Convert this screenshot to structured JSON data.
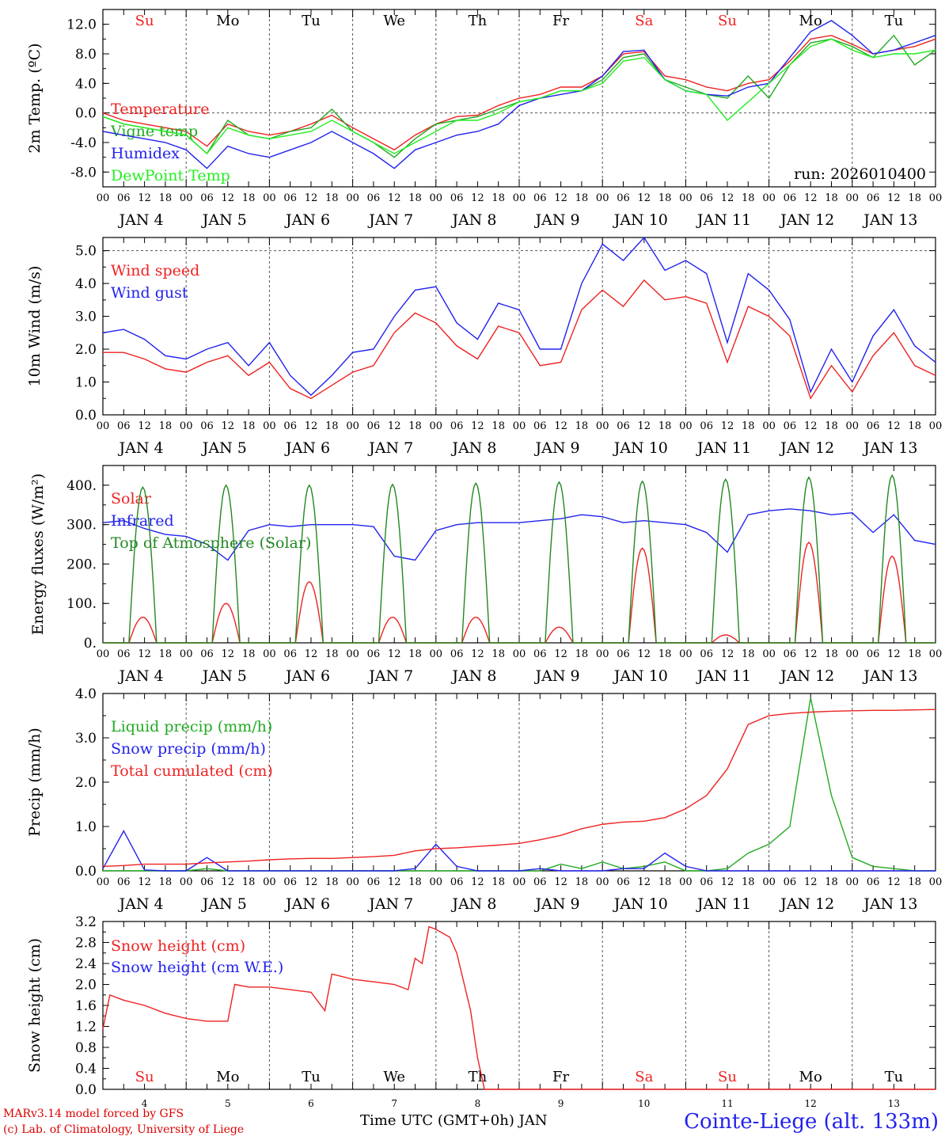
{
  "footer": {
    "model_credit": "MARv3.14 model forced by GFS",
    "lab_credit": "(c) Lab. of Climatology, University of Liege",
    "x_axis_label": "Time UTC (GMT+0h) JAN",
    "station": "Cointe-Liege (alt. 133m)"
  },
  "hour_ticks": [
    "00",
    "06",
    "12",
    "18"
  ],
  "end_tick": "00",
  "date_labels": [
    "JAN  4",
    "JAN  5",
    "JAN  6",
    "JAN  7",
    "JAN  8",
    "JAN  9",
    "JAN 10",
    "JAN 11",
    "JAN 12",
    "JAN 13"
  ],
  "day_names": [
    "Su",
    "Mo",
    "Tu",
    "We",
    "Th",
    "Fr",
    "Sa",
    "Su",
    "Mo",
    "Tu"
  ],
  "day_name_colors": [
    "#ee2222",
    "#000000",
    "#000000",
    "#000000",
    "#000000",
    "#000000",
    "#ee2222",
    "#ee2222",
    "#000000",
    "#000000"
  ],
  "day_numbers": [
    "4",
    "5",
    "6",
    "7",
    "8",
    "9",
    "10",
    "11",
    "12",
    "13"
  ],
  "chart_data": [
    {
      "type": "line",
      "id": "temp",
      "ylabel": "2m Temp. (ºC)",
      "ylim": [
        -10,
        14
      ],
      "yticks": [
        -8,
        -4,
        0,
        4,
        8,
        12
      ],
      "ytick_labels": [
        "-8.0",
        "-4.0",
        "0.0",
        "4.0",
        "8.0",
        "12.0"
      ],
      "ref_line": 0,
      "annotation": "run: 2026010400",
      "x_hours": [
        0,
        6,
        12,
        18,
        24,
        30,
        36,
        42,
        48,
        54,
        60,
        66,
        72,
        78,
        84,
        90,
        96,
        102,
        108,
        114,
        120,
        126,
        132,
        138,
        144,
        150,
        156,
        162,
        168,
        174,
        180,
        186,
        192,
        198,
        204,
        210,
        216,
        222,
        228,
        234,
        240
      ],
      "series": [
        {
          "name": "Temperature",
          "color": "#ee2222",
          "values": [
            0,
            -1,
            -1.5,
            -2,
            -2.5,
            -4.5,
            -1.5,
            -2.5,
            -3,
            -2.5,
            -1.5,
            -0.3,
            -2,
            -3.5,
            -5,
            -3,
            -1.5,
            -0.5,
            -0.3,
            1,
            2,
            2.5,
            3.5,
            3.5,
            5,
            8,
            8.3,
            5,
            4.5,
            3.5,
            3,
            4,
            4.5,
            7,
            10,
            10.5,
            9.3,
            8,
            8.5,
            9,
            10
          ]
        },
        {
          "name": "Vigne temp",
          "color": "#22aa22",
          "values": [
            -0.5,
            -1.5,
            -2,
            -2.5,
            -3,
            -5.5,
            -1,
            -3,
            -3.5,
            -2.5,
            -2,
            0.5,
            -2.5,
            -4,
            -6,
            -3.5,
            -1.5,
            -1,
            -0.5,
            0.5,
            1.5,
            2,
            3,
            3,
            4.5,
            7.5,
            8,
            4.5,
            3.5,
            2.5,
            2,
            5,
            2,
            6.5,
            9.5,
            10,
            9,
            7.5,
            10.5,
            6.5,
            8.5
          ]
        },
        {
          "name": "Humidex",
          "color": "#2222ee",
          "values": [
            -2.5,
            -3,
            -3.5,
            -4,
            -5,
            -7.5,
            -4.5,
            -5.5,
            -6,
            -5,
            -4,
            -2.5,
            -4,
            -5.5,
            -7.5,
            -5,
            -4,
            -3,
            -2.5,
            -1.5,
            1,
            2,
            2.5,
            3,
            5,
            8.3,
            8.5,
            4.5,
            3,
            2.5,
            2.3,
            3.5,
            4,
            7.5,
            11,
            12.5,
            10.5,
            8,
            8.5,
            9.5,
            10.5
          ]
        },
        {
          "name": "DewPoint Temp",
          "color": "#22ee22",
          "values": [
            -0.5,
            -1.5,
            -2,
            -2.5,
            -3,
            -5.5,
            -2,
            -3,
            -3.5,
            -3,
            -2.5,
            -1,
            -2.5,
            -4,
            -5.5,
            -4,
            -2.5,
            -1,
            -1,
            0,
            1.5,
            2,
            3,
            3,
            4,
            7,
            7.5,
            4.5,
            3,
            2.5,
            -1,
            1.5,
            4,
            6.5,
            9,
            10,
            8.5,
            7.5,
            8,
            8,
            8.5
          ]
        }
      ]
    },
    {
      "type": "line",
      "id": "wind",
      "ylabel": "10m Wind (m/s)",
      "ylim": [
        0,
        5.4
      ],
      "yticks": [
        0,
        1,
        2,
        3,
        4,
        5
      ],
      "ytick_labels": [
        "0.0",
        "1.0",
        "2.0",
        "3.0",
        "4.0",
        "5.0"
      ],
      "ref_line": 5,
      "x_hours": [
        0,
        6,
        12,
        18,
        24,
        30,
        36,
        42,
        48,
        54,
        60,
        66,
        72,
        78,
        84,
        90,
        96,
        102,
        108,
        114,
        120,
        126,
        132,
        138,
        144,
        150,
        156,
        162,
        168,
        174,
        180,
        186,
        192,
        198,
        204,
        210,
        216,
        222,
        228,
        234,
        240
      ],
      "series": [
        {
          "name": "Wind speed",
          "color": "#ee2222",
          "values": [
            1.9,
            1.9,
            1.7,
            1.4,
            1.3,
            1.6,
            1.8,
            1.2,
            1.6,
            0.8,
            0.5,
            0.9,
            1.3,
            1.5,
            2.5,
            3.1,
            2.8,
            2.1,
            1.7,
            2.7,
            2.5,
            1.5,
            1.6,
            3.2,
            3.8,
            3.3,
            4.1,
            3.5,
            3.6,
            3.4,
            1.6,
            3.3,
            3.0,
            2.4,
            0.5,
            1.5,
            0.7,
            1.8,
            2.5,
            1.5,
            1.2
          ]
        },
        {
          "name": "Wind gust",
          "color": "#2222ee",
          "values": [
            2.5,
            2.6,
            2.3,
            1.8,
            1.7,
            2.0,
            2.2,
            1.5,
            2.2,
            1.2,
            0.6,
            1.2,
            1.9,
            2.0,
            3.0,
            3.8,
            3.9,
            2.8,
            2.3,
            3.4,
            3.2,
            2.0,
            2.0,
            4.0,
            5.2,
            4.7,
            5.4,
            4.4,
            4.7,
            4.3,
            2.2,
            4.3,
            3.8,
            2.9,
            0.7,
            2.0,
            1.0,
            2.4,
            3.2,
            2.1,
            1.6
          ]
        }
      ]
    },
    {
      "type": "line",
      "id": "energy",
      "ylabel": "Energy fluxes (W/m²)",
      "ylim": [
        0,
        450
      ],
      "yticks": [
        0,
        100,
        200,
        300,
        400
      ],
      "ytick_labels": [
        "0.",
        "100.",
        "200.",
        "300.",
        "400."
      ],
      "ref_line": null,
      "day_peak_hour": 12,
      "series": [
        {
          "name": "Solar",
          "color": "#ee2222",
          "daily_peaks": [
            65,
            100,
            155,
            65,
            65,
            40,
            240,
            20,
            255,
            220
          ]
        },
        {
          "name": "Infrared",
          "color": "#2222ee",
          "x_hours": [
            0,
            6,
            12,
            18,
            24,
            30,
            36,
            42,
            48,
            54,
            60,
            66,
            72,
            78,
            84,
            90,
            96,
            102,
            108,
            114,
            120,
            126,
            132,
            138,
            144,
            150,
            156,
            162,
            168,
            174,
            180,
            186,
            192,
            198,
            204,
            210,
            216,
            222,
            228,
            234,
            240
          ],
          "values": [
            305,
            310,
            290,
            275,
            270,
            250,
            210,
            285,
            300,
            295,
            300,
            300,
            300,
            295,
            220,
            210,
            285,
            300,
            305,
            305,
            305,
            310,
            315,
            325,
            320,
            305,
            310,
            305,
            300,
            280,
            230,
            325,
            335,
            340,
            335,
            325,
            330,
            280,
            325,
            260,
            250
          ]
        },
        {
          "name": "Top of Atmosphere (Solar)",
          "color": "#228822",
          "daily_peaks": [
            395,
            400,
            400,
            402,
            405,
            408,
            410,
            415,
            420,
            425
          ]
        }
      ]
    },
    {
      "type": "line",
      "id": "precip",
      "ylabel": "Precip (mm/h)",
      "ylim": [
        0,
        4
      ],
      "yticks": [
        0,
        1,
        2,
        3,
        4
      ],
      "ytick_labels": [
        "0.0",
        "1.0",
        "2.0",
        "3.0",
        "4.0"
      ],
      "ref_line": null,
      "x_hours": [
        0,
        6,
        12,
        18,
        24,
        30,
        36,
        42,
        48,
        54,
        60,
        66,
        72,
        78,
        84,
        90,
        96,
        102,
        108,
        114,
        120,
        126,
        132,
        138,
        144,
        150,
        156,
        162,
        168,
        174,
        180,
        186,
        192,
        198,
        204,
        210,
        216,
        222,
        228,
        234,
        240
      ],
      "series": [
        {
          "name": "Liquid precip (mm/h)",
          "color": "#22aa22",
          "values": [
            0,
            0,
            0,
            0,
            0,
            0.05,
            0,
            0,
            0,
            0,
            0,
            0,
            0,
            0,
            0,
            0,
            0,
            0,
            0,
            0,
            0,
            0,
            0.15,
            0.05,
            0.2,
            0.05,
            0.1,
            0.2,
            0,
            0,
            0.05,
            0.4,
            0.6,
            1.0,
            3.9,
            1.7,
            0.3,
            0.1,
            0.05,
            0,
            0
          ]
        },
        {
          "name": "Snow precip (mm/h)",
          "color": "#2222ee",
          "values": [
            0.05,
            0.9,
            0.02,
            0,
            0,
            0.3,
            0,
            0,
            0,
            0,
            0,
            0,
            0,
            0,
            0,
            0.05,
            0.6,
            0.1,
            0,
            0,
            0,
            0.05,
            0,
            0,
            0,
            0.05,
            0.05,
            0.4,
            0.1,
            0,
            0,
            0,
            0,
            0,
            0,
            0,
            0,
            0,
            0,
            0,
            0
          ]
        },
        {
          "name": "Total cumulated (cm)",
          "color": "#ee2222",
          "values": [
            0.1,
            0.12,
            0.15,
            0.15,
            0.15,
            0.18,
            0.2,
            0.22,
            0.25,
            0.27,
            0.28,
            0.28,
            0.3,
            0.32,
            0.35,
            0.45,
            0.5,
            0.52,
            0.55,
            0.58,
            0.62,
            0.7,
            0.8,
            0.95,
            1.05,
            1.1,
            1.12,
            1.2,
            1.4,
            1.7,
            2.3,
            3.3,
            3.5,
            3.55,
            3.58,
            3.6,
            3.61,
            3.62,
            3.62,
            3.63,
            3.64
          ]
        }
      ]
    },
    {
      "type": "line",
      "id": "snow",
      "ylabel": "Snow height (cm)",
      "ylim": [
        0,
        3.2
      ],
      "yticks": [
        0,
        0.4,
        0.8,
        1.2,
        1.6,
        2.0,
        2.4,
        2.8,
        3.2
      ],
      "ytick_labels": [
        "0.0",
        "0.4",
        "0.8",
        "1.2",
        "1.6",
        "2.0",
        "2.4",
        "2.8",
        "3.2"
      ],
      "ref_line": null,
      "x_hours": [
        0,
        2,
        6,
        12,
        18,
        24,
        30,
        36,
        38,
        42,
        48,
        54,
        60,
        64,
        66,
        72,
        78,
        84,
        88,
        90,
        92,
        94,
        96,
        100,
        102,
        106,
        108,
        110,
        112,
        114,
        240
      ],
      "series": [
        {
          "name": "Snow height (cm)",
          "color": "#ee2222",
          "values": [
            1.15,
            1.8,
            1.7,
            1.6,
            1.45,
            1.35,
            1.3,
            1.3,
            2.0,
            1.95,
            1.95,
            1.9,
            1.85,
            1.5,
            2.2,
            2.1,
            2.05,
            2.0,
            1.9,
            2.5,
            2.4,
            3.1,
            3.05,
            2.9,
            2.6,
            1.5,
            0.6,
            0,
            0,
            0,
            0
          ]
        },
        {
          "name": "Snow height (cm W.E.)",
          "color": "#2222ee",
          "values": []
        }
      ]
    }
  ]
}
